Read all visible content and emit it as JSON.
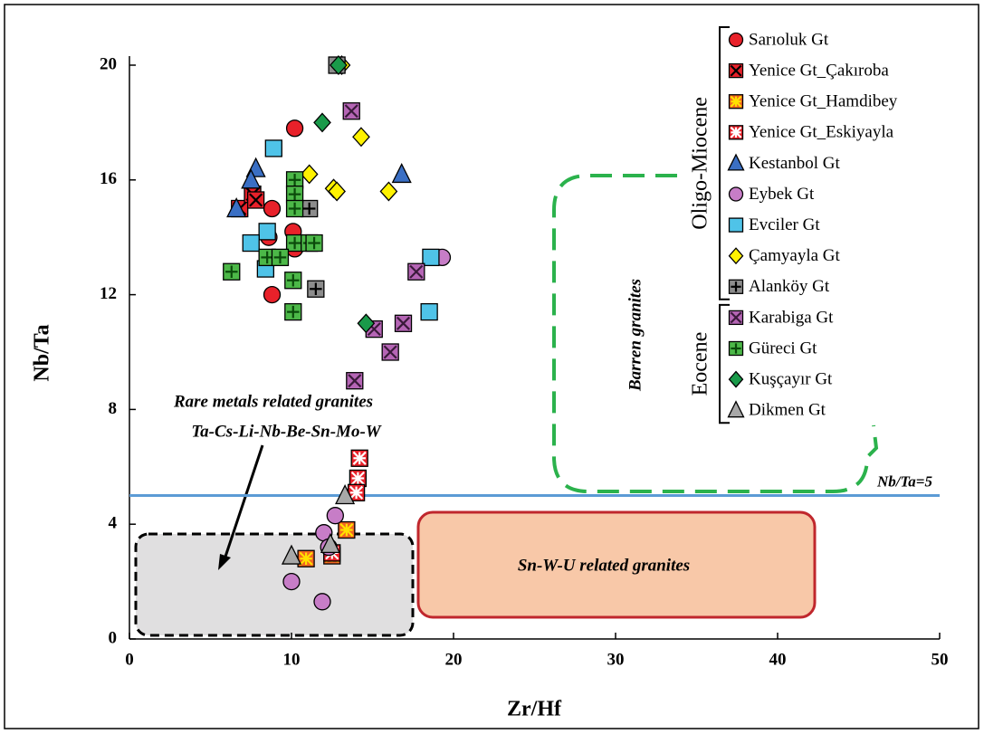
{
  "chart_data": {
    "type": "scatter",
    "x_label": "Zr/Hf",
    "y_label": "Nb/Ta",
    "xlim": [
      0,
      50
    ],
    "xticks": [
      0,
      10,
      20,
      30,
      40,
      50
    ],
    "ylim": [
      0,
      20
    ],
    "yticks": [
      0,
      4,
      8,
      12,
      16,
      20
    ],
    "reference_line": {
      "value": 5,
      "label": "Nb/Ta=5",
      "color": "#5b9bd5"
    },
    "groups": [
      {
        "name": "Oligo-Miocene",
        "size": 9
      },
      {
        "name": "Eocene",
        "size": 4
      }
    ],
    "annotations": [
      "Rare metals related granites",
      "Ta-Cs-Li-Nb-Be-Sn-Mo-W",
      "Sn-W-U related granites",
      "Barren granites"
    ],
    "series": [
      {
        "name": "Sarıoluk Gt",
        "marker": "circle",
        "color": "#e8212a",
        "x": [
          10.2,
          8.8,
          8.6,
          10.1,
          10.2,
          8.8
        ],
        "y": [
          17.8,
          15.0,
          14.0,
          14.2,
          13.6,
          12.0
        ]
      },
      {
        "name": "Yenice Gt_Çakıroba",
        "marker": "square",
        "color": "#e8212a",
        "glyph": "x",
        "glyph_color": "#000000",
        "x": [
          6.8,
          7.6,
          7.8
        ],
        "y": [
          15.0,
          15.5,
          15.3
        ]
      },
      {
        "name": "Yenice Gt_Hamdibey",
        "marker": "square",
        "color": "#f26522",
        "glyph": "star",
        "glyph_color": "#ffe100",
        "x": [
          10.9,
          12.5,
          13.4
        ],
        "y": [
          2.8,
          2.9,
          3.8
        ]
      },
      {
        "name": "Yenice Gt_Eskiyayla",
        "marker": "square",
        "color": "#e8212a",
        "glyph": "star",
        "glyph_color": "#ffffff",
        "x": [
          14.2,
          14.1,
          14.0,
          12.5
        ],
        "y": [
          6.3,
          5.6,
          5.1,
          3.0
        ]
      },
      {
        "name": "Kestanbol Gt",
        "marker": "triangle",
        "color": "#3a6fc4",
        "x": [
          6.6,
          7.8,
          7.5,
          16.8
        ],
        "y": [
          15.0,
          16.4,
          16.0,
          16.2
        ]
      },
      {
        "name": "Eybek Gt",
        "marker": "circle",
        "color": "#c77dc7",
        "x": [
          19.3,
          12.0,
          12.7,
          10.0,
          11.9,
          12.3
        ],
        "y": [
          13.3,
          3.7,
          4.3,
          2.0,
          1.3,
          3.2
        ]
      },
      {
        "name": "Evciler Gt",
        "marker": "square",
        "color": "#4fc3e8",
        "x": [
          8.9,
          8.5,
          7.5,
          8.4,
          18.6,
          18.5
        ],
        "y": [
          17.1,
          14.2,
          13.8,
          12.9,
          13.3,
          11.4
        ]
      },
      {
        "name": "Çamyayla Gt",
        "marker": "diamond",
        "color": "#fff200",
        "x": [
          11.1,
          12.6,
          12.8,
          14.3,
          16.0,
          13.1
        ],
        "y": [
          16.2,
          15.7,
          15.6,
          17.5,
          15.6,
          20.0
        ]
      },
      {
        "name": "Alanköy Gt",
        "marker": "square",
        "color": "#8c8c8c",
        "glyph": "plus",
        "glyph_color": "#000000",
        "x": [
          11.1,
          11.5,
          12.8
        ],
        "y": [
          15.0,
          12.2,
          20.0
        ]
      },
      {
        "name": "Karabiga Gt",
        "marker": "square",
        "color": "#b565b5",
        "glyph": "x",
        "glyph_color": "#3a1a3a",
        "x": [
          13.7,
          17.7,
          16.9,
          15.1,
          16.1,
          13.9
        ],
        "y": [
          18.4,
          12.8,
          11.0,
          10.8,
          10.0,
          9.0
        ]
      },
      {
        "name": "Güreci Gt",
        "marker": "square",
        "color": "#4cb848",
        "glyph": "plus",
        "glyph_color": "#0b4a0b",
        "x": [
          6.3,
          10.2,
          10.2,
          10.2,
          10.2,
          11.1,
          11.4,
          8.5,
          9.3,
          10.1,
          10.1
        ],
        "y": [
          12.8,
          16.0,
          15.5,
          15.0,
          13.8,
          13.8,
          13.8,
          13.3,
          13.3,
          12.5,
          11.4
        ]
      },
      {
        "name": "Kuşçayır Gt",
        "marker": "diamond",
        "color": "#1a9a4a",
        "x": [
          12.9,
          11.9,
          14.6
        ],
        "y": [
          20.0,
          18.0,
          11.0
        ]
      },
      {
        "name": "Dikmen Gt",
        "marker": "triangle",
        "color": "#a8a8a8",
        "x": [
          10.0,
          12.4,
          13.3
        ],
        "y": [
          2.9,
          3.3,
          5.0
        ]
      }
    ]
  }
}
